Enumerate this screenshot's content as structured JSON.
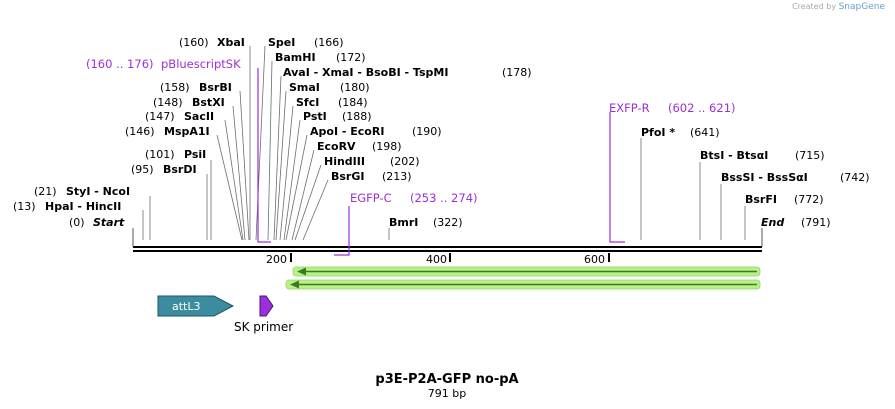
{
  "credit": {
    "prefix": "Created by",
    "brand": "SnapGene"
  },
  "plasmid": {
    "name": "p3E-P2A-GFP no-pA",
    "size_label": "791 bp",
    "length_bp": 791
  },
  "ruler": {
    "ticks": [
      "200",
      "400",
      "600"
    ]
  },
  "sites": [
    {
      "name": "XbaI",
      "pos": "(160)",
      "bp": 160
    },
    {
      "name": "SpeI",
      "pos": "(166)",
      "bp": 166
    },
    {
      "name": "BamHI",
      "pos": "(172)",
      "bp": 172
    },
    {
      "name": "AvaI - XmaI - BsoBI - TspMI",
      "pos": "(178)",
      "bp": 178
    },
    {
      "name": "SmaI",
      "pos": "(180)",
      "bp": 180
    },
    {
      "name": "SfcI",
      "pos": "(184)",
      "bp": 184
    },
    {
      "name": "PstI",
      "pos": "(188)",
      "bp": 188
    },
    {
      "name": "ApoI - EcoRI",
      "pos": "(190)",
      "bp": 190
    },
    {
      "name": "EcoRV",
      "pos": "(198)",
      "bp": 198
    },
    {
      "name": "HindIII",
      "pos": "(202)",
      "bp": 202
    },
    {
      "name": "BsrGI",
      "pos": "(213)",
      "bp": 213
    },
    {
      "name": "BsrBI",
      "pos": "(158)",
      "bp": 158
    },
    {
      "name": "BstXI",
      "pos": "(148)",
      "bp": 148
    },
    {
      "name": "SacII",
      "pos": "(147)",
      "bp": 147
    },
    {
      "name": "MspA1I",
      "pos": "(146)",
      "bp": 146
    },
    {
      "name": "PsiI",
      "pos": "(101)",
      "bp": 101
    },
    {
      "name": "BsrDI",
      "pos": "(95)",
      "bp": 95
    },
    {
      "name": "StyI - NcoI",
      "pos": "(21)",
      "bp": 21
    },
    {
      "name": "HpaI - HincII",
      "pos": "(13)",
      "bp": 13
    },
    {
      "name": "Start",
      "pos": "(0)",
      "bp": 0
    },
    {
      "name": "BmrI",
      "pos": "(322)",
      "bp": 322
    },
    {
      "name": "PfoI *",
      "pos": "(641)",
      "bp": 641
    },
    {
      "name": "BtsI - BtsαI",
      "pos": "(715)",
      "bp": 715
    },
    {
      "name": "BssSI - BssSαI",
      "pos": "(742)",
      "bp": 742
    },
    {
      "name": "BsrFI",
      "pos": "(772)",
      "bp": 772
    },
    {
      "name": "End",
      "pos": "(791)",
      "bp": 791
    }
  ],
  "primers": [
    {
      "name": "pBluescriptSK",
      "range": "(160 .. 176)",
      "start": 160,
      "end": 176
    },
    {
      "name": "EGFP-C",
      "range": "(253 .. 274)",
      "start": 253,
      "end": 274
    },
    {
      "name": "EXFP-R",
      "range": "(602 .. 621)",
      "start": 602,
      "end": 621
    }
  ],
  "features": [
    {
      "name": "attL3",
      "color": "#3b8c9e"
    },
    {
      "name": "SK primer",
      "color": "#9b2fd9"
    }
  ],
  "colors": {
    "primer": "#9b30d8",
    "orf": "#3a7d1a",
    "orf_glow": "#b8f08a"
  }
}
